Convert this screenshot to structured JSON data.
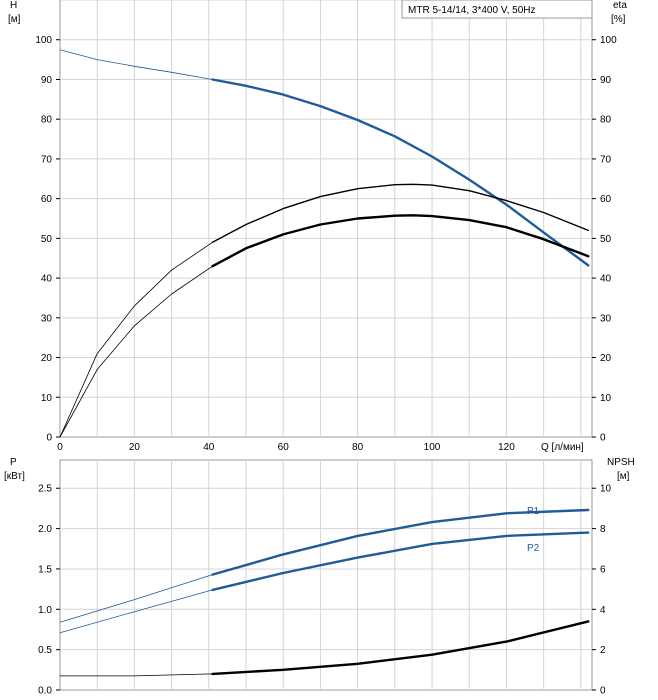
{
  "chart_data": [
    {
      "type": "line",
      "legend": "MTR 5-14/14, 3*400 V, 50Hz",
      "xlabel": "Q [л/мин]",
      "xlim": [
        0,
        143
      ],
      "xticks": [
        0,
        20,
        40,
        60,
        80,
        100,
        120
      ],
      "ylabel_left": [
        "H",
        "[м]"
      ],
      "ylabel_right": [
        "eta",
        "[%]"
      ],
      "ylim": [
        0,
        110
      ],
      "yticks": [
        0,
        10,
        20,
        30,
        40,
        50,
        60,
        70,
        80,
        90,
        100
      ],
      "grid": true,
      "colors": {
        "H": "#1f5a99",
        "eta": "#000000"
      },
      "series": [
        {
          "id": "H",
          "axis": "left",
          "bold_from": 41,
          "x": [
            0,
            10,
            20,
            30,
            41,
            50,
            60,
            70,
            80,
            90,
            100,
            110,
            120,
            130,
            142
          ],
          "y": [
            97.5,
            95,
            93.3,
            91.8,
            90,
            88.4,
            86.2,
            83.3,
            79.8,
            75.7,
            70.6,
            64.8,
            58.5,
            51.5,
            43.2
          ]
        },
        {
          "id": "eta1",
          "axis": "right",
          "bold_from": 41,
          "x": [
            0,
            10,
            20,
            30,
            41,
            50,
            60,
            70,
            80,
            90,
            95,
            100,
            110,
            120,
            130,
            142
          ],
          "y": [
            0,
            21,
            33,
            42,
            49,
            53.5,
            57.5,
            60.5,
            62.5,
            63.5,
            63.6,
            63.4,
            62,
            59.5,
            56.5,
            52
          ]
        },
        {
          "id": "eta2",
          "axis": "right",
          "bold_from": 41,
          "x": [
            0,
            10,
            20,
            30,
            41,
            50,
            60,
            70,
            80,
            90,
            95,
            100,
            110,
            120,
            130,
            142
          ],
          "y": [
            0,
            17,
            28,
            36,
            43,
            47.5,
            51,
            53.5,
            55,
            55.7,
            55.8,
            55.6,
            54.6,
            52.8,
            49.8,
            45.5
          ]
        }
      ]
    },
    {
      "type": "line",
      "ylabel_left": [
        "P",
        "[кВт]"
      ],
      "ylabel_right": [
        "NPSH",
        "[м]"
      ],
      "xlim": [
        0,
        143
      ],
      "ylim": [
        0,
        2.85
      ],
      "yticks": [
        0.0,
        0.5,
        1.0,
        1.5,
        2.0,
        2.5
      ],
      "ytick_labels": [
        "0.0",
        "0.5",
        "1.0",
        "1.5",
        "2.0",
        "2.5"
      ],
      "ylim_right": [
        0,
        11.4
      ],
      "yticks_right": [
        0,
        2,
        4,
        6,
        8,
        10
      ],
      "grid": true,
      "colors": {
        "P1": "#1f5a99",
        "P2": "#1f5a99",
        "NPSH": "#000000"
      },
      "series": [
        {
          "name": "P1",
          "axis": "left",
          "bold_from": 41,
          "x": [
            0,
            20,
            41,
            60,
            80,
            100,
            120,
            142
          ],
          "y": [
            0.84,
            1.12,
            1.43,
            1.68,
            1.91,
            2.08,
            2.19,
            2.23
          ]
        },
        {
          "name": "P2",
          "axis": "left",
          "bold_from": 41,
          "x": [
            0,
            20,
            41,
            60,
            80,
            100,
            120,
            142
          ],
          "y": [
            0.71,
            0.97,
            1.24,
            1.45,
            1.64,
            1.81,
            1.91,
            1.95
          ]
        },
        {
          "id": "NPSH",
          "axis": "right",
          "bold_from": 41,
          "x": [
            0,
            20,
            41,
            60,
            80,
            100,
            120,
            142
          ],
          "y": [
            0.7,
            0.7,
            0.8,
            1.0,
            1.3,
            1.75,
            2.4,
            3.4
          ]
        }
      ]
    }
  ]
}
